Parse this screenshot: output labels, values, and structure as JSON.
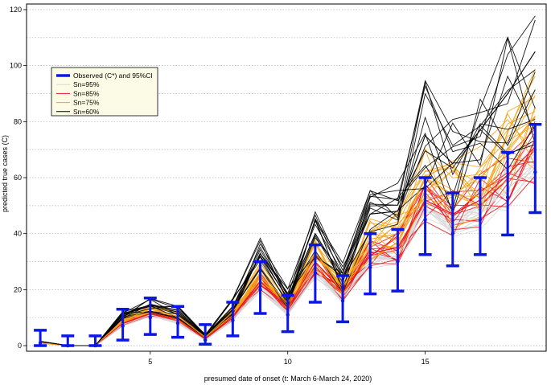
{
  "chart_data": {
    "type": "line",
    "xlabel": "presumed date of onset (t: March 6-March 24, 2020)",
    "ylabel": "predicted true cases (C)",
    "xlim": [
      0.5,
      19.4
    ],
    "ylim": [
      -2,
      122
    ],
    "x_ticks": [
      5,
      10,
      15
    ],
    "y_ticks": [
      0,
      20,
      40,
      60,
      80,
      100,
      120
    ],
    "grid": "horizontal dotted",
    "legend_position": "top-left",
    "legend": [
      {
        "label": "Observed (C*) and 95%CI",
        "color": "#0b16e8"
      },
      {
        "label": "Sn=95%",
        "color": "#d6d6d6"
      },
      {
        "label": "Sn=85%",
        "color": "#e8131b"
      },
      {
        "label": "Sn=75%",
        "color": "#f5a316"
      },
      {
        "label": "Sn=60%",
        "color": "#000000"
      }
    ],
    "observed": {
      "name": "Observed (C*) and 95%CI",
      "color": "#0b16e8",
      "x": [
        1,
        2,
        3,
        4,
        5,
        6,
        7,
        8,
        9,
        10,
        11,
        12,
        13,
        14,
        15,
        16,
        17,
        18,
        19
      ],
      "values": [
        1,
        0,
        0,
        7,
        10,
        8,
        2,
        9,
        20,
        11,
        26,
        16,
        28,
        30,
        45,
        40,
        45,
        53,
        62
      ],
      "ci_low": [
        0,
        0,
        0,
        2,
        4,
        3,
        0.5,
        3.5,
        11.5,
        5,
        15.5,
        8.5,
        18.5,
        19.5,
        32.5,
        28.5,
        32.5,
        39.5,
        47.5
      ],
      "ci_high": [
        5.5,
        3.5,
        3.5,
        13,
        17,
        14,
        7.5,
        15.5,
        30,
        18,
        36,
        25,
        40,
        41.5,
        60,
        54.5,
        60,
        69,
        79
      ]
    },
    "series": [
      {
        "name": "Sn=95%",
        "color": "#d6d6d6",
        "x": [
          1,
          2,
          3,
          4,
          5,
          6,
          7,
          8,
          9,
          10,
          11,
          12,
          13,
          14,
          15,
          16,
          17,
          18,
          19
        ],
        "values": [
          1,
          0,
          0,
          7.5,
          11,
          8.5,
          2,
          9.5,
          21,
          12,
          27,
          17,
          30,
          32,
          48,
          43,
          47,
          56,
          65
        ]
      },
      {
        "name": "Sn=85%",
        "color": "#e8131b",
        "x": [
          1,
          2,
          3,
          4,
          5,
          6,
          7,
          8,
          9,
          10,
          11,
          12,
          13,
          14,
          15,
          16,
          17,
          18,
          19
        ],
        "values": [
          1,
          0,
          0,
          8,
          11.5,
          9.5,
          2.5,
          10.5,
          23,
          13.5,
          30,
          19,
          33,
          35,
          52,
          47,
          52,
          61,
          71
        ]
      },
      {
        "name": "Sn=75%",
        "color": "#f5a316",
        "x": [
          1,
          2,
          3,
          4,
          5,
          6,
          7,
          8,
          9,
          10,
          11,
          12,
          13,
          14,
          15,
          16,
          17,
          18,
          19
        ],
        "values": [
          1,
          0,
          0,
          9,
          13,
          10.5,
          3,
          12,
          26,
          15,
          33,
          21,
          38,
          40,
          60,
          54,
          60,
          70,
          82
        ]
      },
      {
        "name": "Sn=60%",
        "color": "#000000",
        "x": [
          1,
          2,
          3,
          4,
          5,
          6,
          7,
          8,
          9,
          10,
          11,
          12,
          13,
          14,
          15,
          16,
          17,
          18,
          19
        ],
        "values": [
          1.5,
          0,
          0,
          11,
          14.5,
          12,
          3.5,
          14,
          32,
          17,
          40,
          24,
          47,
          48,
          75,
          65,
          77,
          90,
          105
        ]
      }
    ]
  }
}
